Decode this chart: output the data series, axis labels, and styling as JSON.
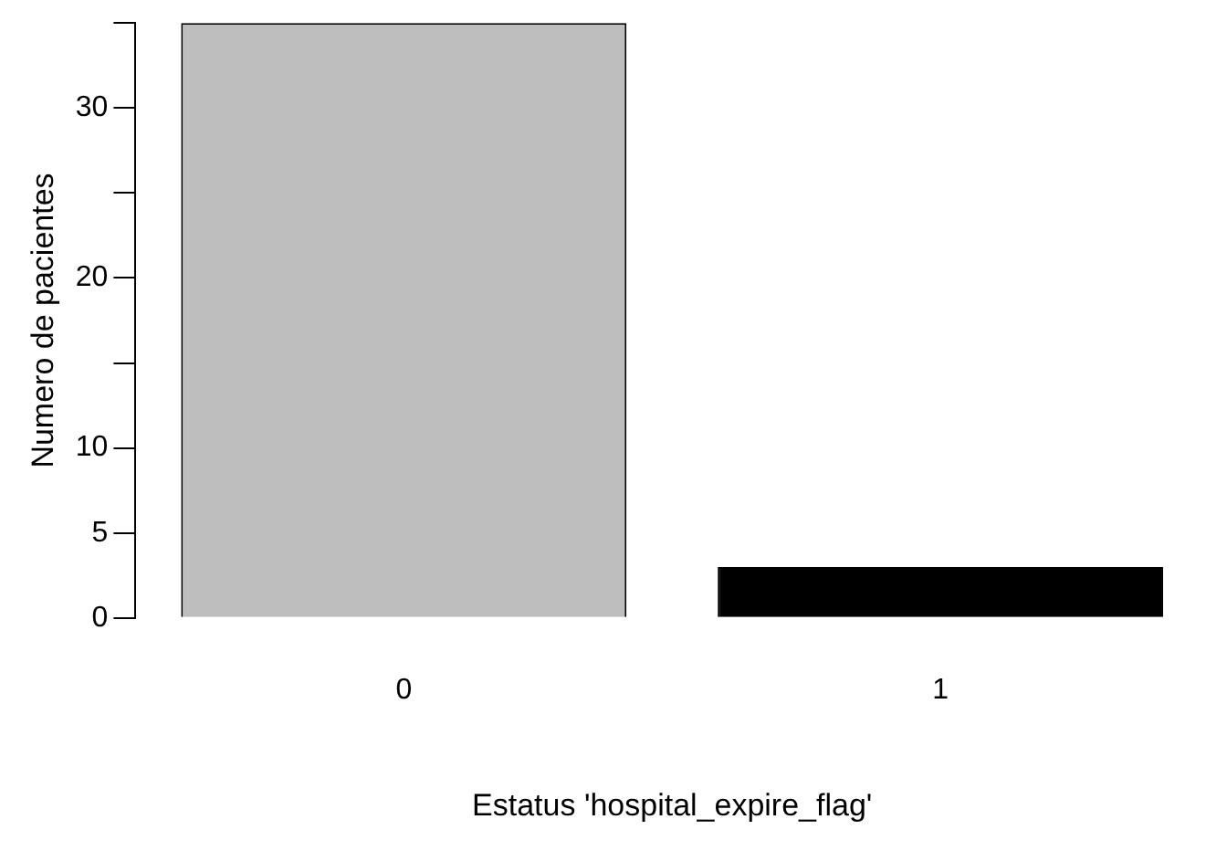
{
  "chart_data": {
    "type": "bar",
    "xlabel": "Estatus 'hospital_expire_flag'",
    "ylabel": "Numero de pacientes",
    "categories": [
      "0",
      "1"
    ],
    "values": [
      35,
      3
    ],
    "colors": [
      "#bebebe",
      "#000000"
    ],
    "ylim": [
      0,
      35
    ],
    "yticks": [
      0,
      5,
      10,
      {
        "value": 15,
        "label": null
      },
      20,
      {
        "value": 25,
        "label": null
      },
      30,
      {
        "value": 35,
        "label": null
      }
    ],
    "grid": false,
    "legend": false
  }
}
